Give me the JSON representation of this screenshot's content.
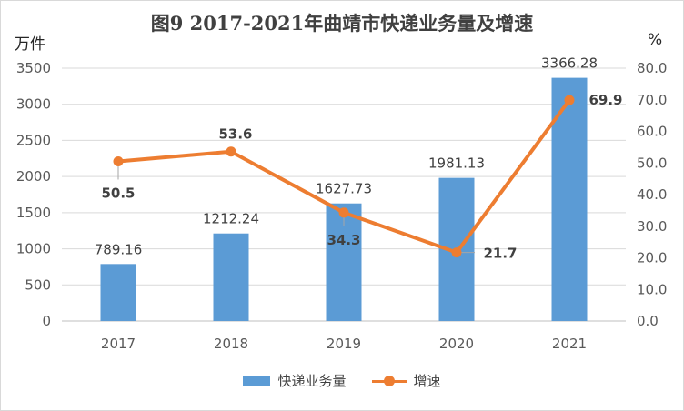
{
  "chart_data": {
    "type": "bar",
    "title": "图9 2017-2021年曲靖市快递业务量及增速",
    "left_unit": "万件",
    "right_unit": "%",
    "categories": [
      "2017",
      "2018",
      "2019",
      "2020",
      "2021"
    ],
    "series": [
      {
        "name": "快递业务量",
        "type": "bar",
        "axis": "left",
        "values": [
          789.16,
          1212.24,
          1627.73,
          1981.13,
          3366.28
        ],
        "labels": [
          "789.16",
          "1212.24",
          "1627.73",
          "1981.13",
          "3366.28"
        ],
        "color": "#5b9bd5"
      },
      {
        "name": "增速",
        "type": "line",
        "axis": "right",
        "values": [
          50.5,
          53.6,
          34.3,
          21.7,
          69.9
        ],
        "labels": [
          "50.5",
          "53.6",
          "34.3",
          "21.7",
          "69.9"
        ],
        "color": "#ed7d31"
      }
    ],
    "y_left": {
      "range": [
        0,
        3500
      ],
      "ticks": [
        "0",
        "500",
        "1000",
        "1500",
        "2000",
        "2500",
        "3000",
        "3500"
      ]
    },
    "y_right": {
      "range": [
        0,
        80
      ],
      "ticks": [
        "0.0",
        "10.0",
        "20.0",
        "30.0",
        "40.0",
        "50.0",
        "60.0",
        "70.0",
        "80.0"
      ]
    },
    "grid": true,
    "legend": "bottom"
  }
}
